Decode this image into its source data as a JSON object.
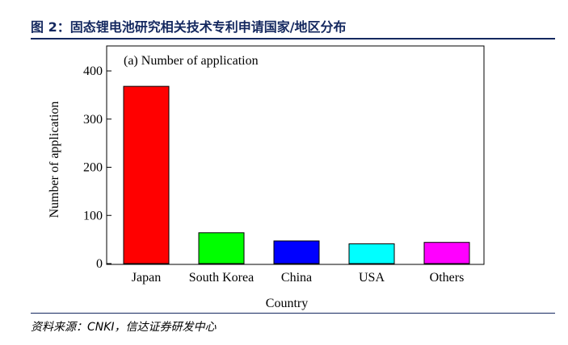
{
  "header": {
    "figure_title": "图 2：固态锂电池研究相关技术专利申请国家/地区分布"
  },
  "footer": {
    "source": "资料来源：CNKI，信达证券研发中心"
  },
  "colors": {
    "title": "#14285f",
    "rule": "#14285f"
  },
  "chart_data": {
    "type": "bar",
    "title": "(a) Number of application",
    "xlabel": "Country",
    "ylabel": "Number of application",
    "categories": [
      "Japan",
      "South Korea",
      "China",
      "USA",
      "Others"
    ],
    "values": [
      368,
      64,
      47,
      41,
      44
    ],
    "bar_colors": [
      "#ff0000",
      "#00ff00",
      "#0000ff",
      "#00ffff",
      "#ff00ff"
    ],
    "ylim": [
      0,
      400
    ],
    "yticks": [
      0,
      100,
      200,
      300,
      400
    ],
    "grid": false,
    "legend": "none"
  }
}
